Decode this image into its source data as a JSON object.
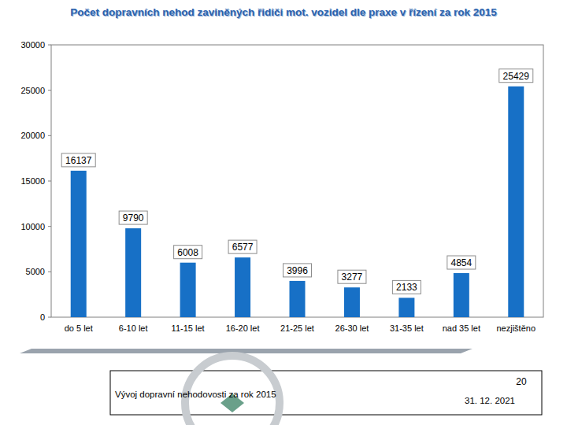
{
  "chart_data": {
    "type": "bar",
    "title": "Počet dopravních nehod zaviněných řidiči mot. vozidel dle praxe v řízení za rok 2015",
    "categories": [
      "do 5 let",
      "6-10 let",
      "11-15 let",
      "16-20 let",
      "21-25 let",
      "26-30 let",
      "31-35 let",
      "nad 35 let",
      "nezjištěno"
    ],
    "values": [
      16137,
      9790,
      6008,
      6577,
      3996,
      3277,
      2133,
      4854,
      25429
    ],
    "color": "#1770c6",
    "ylim": [
      0,
      30000
    ],
    "yticks": [
      0,
      5000,
      10000,
      15000,
      20000,
      25000,
      30000
    ],
    "grid": false,
    "data_labels": true,
    "annotations": [
      "20",
      "Vývoj dopravní nehodovosti za rok 2015",
      "31. 12. 2021"
    ]
  }
}
